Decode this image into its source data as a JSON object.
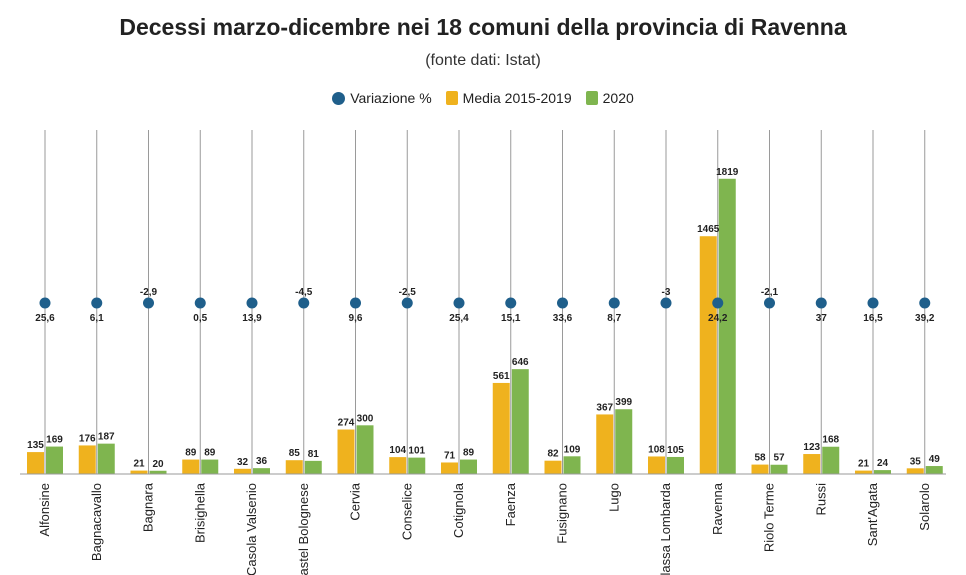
{
  "chart_data": {
    "type": "bar",
    "title": "Decessi marzo-dicembre nei 18 comuni della provincia di Ravenna",
    "subtitle": "(fonte dati: Istat)",
    "categories": [
      "Alfonsine",
      "Bagnacavallo",
      "Bagnara",
      "Brisighella",
      "Casola Valsenio",
      "Castel Bolognese",
      "Cervia",
      "Conselice",
      "Cotignola",
      "Faenza",
      "Fusignano",
      "Lugo",
      "Massa Lombarda",
      "Ravenna",
      "Riolo Terme",
      "Russi",
      "Sant'Agata",
      "Solarolo"
    ],
    "category_labels": [
      "Alfonsine",
      "Bagnacavallo",
      "Bagnara",
      "Brisighella",
      "Casola Valsenio",
      "astel Bolognese",
      "Cervia",
      "Conselice",
      "Cotignola",
      "Faenza",
      "Fusignano",
      "Lugo",
      "lassa Lombarda",
      "Ravenna",
      "Riolo Terme",
      "Russi",
      "Sant'Agata",
      "Solarolo"
    ],
    "series": [
      {
        "name": "Variazione %",
        "kind": "dot",
        "color": "#1f5f8b",
        "values": [
          25.6,
          6.1,
          -2.9,
          0.5,
          13.9,
          -4.5,
          9.6,
          -2.5,
          25.4,
          15.1,
          33.6,
          8.7,
          -3,
          24.2,
          -2.1,
          37,
          16.5,
          39.2
        ],
        "labels": [
          "25,6",
          "6,1",
          "-2,9",
          "0,5",
          "13,9",
          "-4,5",
          "9,6",
          "-2,5",
          "25,4",
          "15,1",
          "33,6",
          "8,7",
          "-3",
          "24,2",
          "-2,1",
          "37",
          "16,5",
          "39,2"
        ]
      },
      {
        "name": "Media 2015-2019",
        "kind": "bar",
        "color": "#efb21e",
        "values": [
          135,
          176,
          21,
          89,
          32,
          85,
          274,
          104,
          71,
          561,
          82,
          367,
          108,
          1465,
          58,
          123,
          21,
          35
        ]
      },
      {
        "name": "2020",
        "kind": "bar",
        "color": "#7fb54f",
        "values": [
          169,
          187,
          20,
          89,
          36,
          81,
          300,
          101,
          89,
          646,
          109,
          399,
          105,
          1819,
          57,
          168,
          24,
          49
        ]
      }
    ],
    "ylim": [
      0,
      1900
    ],
    "grid": false,
    "legend_position": "top-center"
  }
}
